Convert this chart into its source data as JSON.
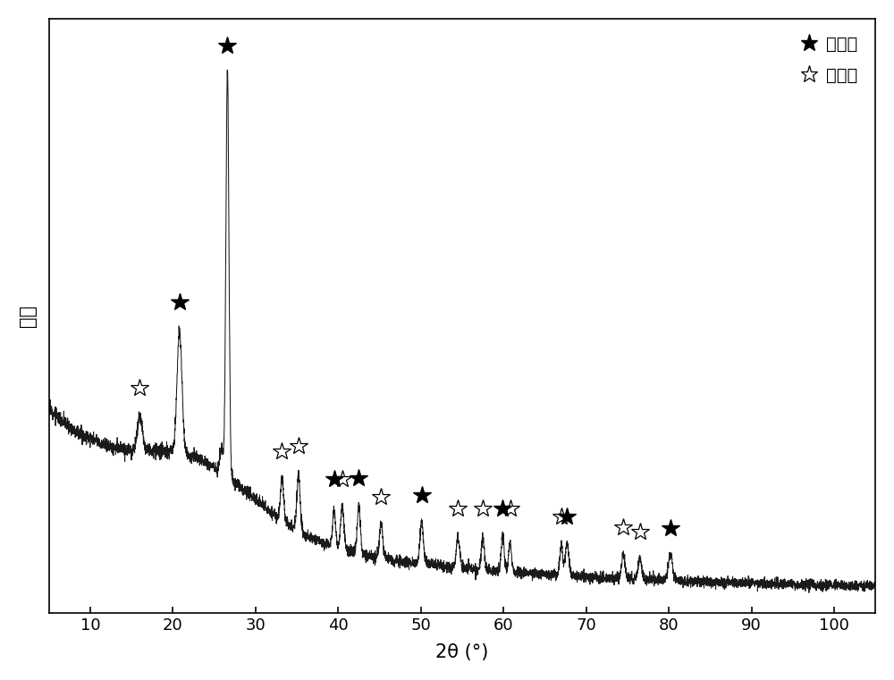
{
  "xlabel": "2θ (°)",
  "ylabel": "强度",
  "xmin": 5,
  "xmax": 105,
  "background_color": "#ffffff",
  "line_color": "#1a1a1a",
  "quartz_label": "石英石",
  "mullite_label": "莫来石",
  "quartz_peaks_data": [
    [
      20.8,
      0.3,
      0.3
    ],
    [
      26.6,
      1.0,
      0.18
    ],
    [
      39.5,
      0.095,
      0.18
    ],
    [
      42.5,
      0.12,
      0.18
    ],
    [
      50.1,
      0.1,
      0.2
    ],
    [
      59.9,
      0.085,
      0.18
    ],
    [
      67.7,
      0.08,
      0.2
    ],
    [
      80.2,
      0.065,
      0.25
    ]
  ],
  "mullite_peaks_data": [
    [
      16.0,
      0.085,
      0.3
    ],
    [
      25.9,
      0.06,
      0.2
    ],
    [
      33.2,
      0.105,
      0.2
    ],
    [
      35.2,
      0.135,
      0.2
    ],
    [
      40.5,
      0.105,
      0.2
    ],
    [
      45.2,
      0.085,
      0.2
    ],
    [
      54.5,
      0.075,
      0.2
    ],
    [
      57.5,
      0.075,
      0.18
    ],
    [
      60.8,
      0.07,
      0.18
    ],
    [
      67.0,
      0.07,
      0.18
    ],
    [
      74.5,
      0.06,
      0.2
    ],
    [
      76.5,
      0.055,
      0.2
    ]
  ],
  "quartz_marker_x": [
    20.8,
    26.6,
    39.5,
    42.5,
    50.1,
    59.9,
    67.7,
    80.2
  ],
  "mullite_marker_x": [
    16.0,
    33.2,
    35.2,
    40.5,
    45.2,
    54.5,
    57.5,
    60.8,
    67.0,
    74.5,
    76.5
  ]
}
